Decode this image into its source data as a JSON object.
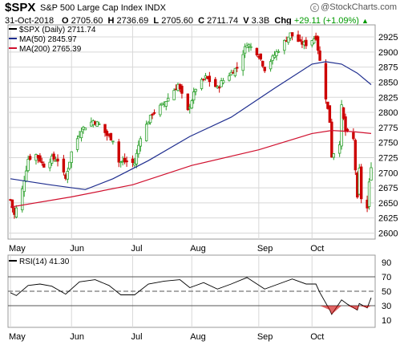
{
  "header": {
    "symbol": "$SPX",
    "name": "S&P 500 Large Cap Index INDX",
    "date": "31-Oct-2018",
    "quote": {
      "open_label": "O",
      "open": "2705.60",
      "high_label": "H",
      "high": "2736.69",
      "low_label": "L",
      "low": "2705.60",
      "close_label": "C",
      "close": "2711.74",
      "volume_label": "V",
      "volume": "3.3B",
      "chg_label": "Chg",
      "chg": "+29.11 (+1.09%)",
      "chg_arrow": "▲"
    },
    "brand": "@StockCharts.com"
  },
  "legend": {
    "main": "$SPX (Daily) 2711.74",
    "ma50": "MA(50) 2845.97",
    "ma200": "MA(200) 2765.39",
    "rsi": "RSI(14) 41.30"
  },
  "colors": {
    "up": "#2ca02c",
    "down": "#cc0000",
    "ma50": "#1f2e8f",
    "ma200": "#d0102e",
    "rsi": "#000000",
    "grid": "#d8d8d8",
    "chg": "#009900"
  },
  "chart_data": [
    {
      "type": "candlestick",
      "title": "$SPX (Daily) 2711.74",
      "xaxis_ticks": [
        "May",
        "Jun",
        "Jul",
        "Aug",
        "Sep",
        "Oct"
      ],
      "yaxis_ticks": [
        2600,
        2625,
        2650,
        2675,
        2700,
        2725,
        2750,
        2775,
        2800,
        2825,
        2850,
        2875,
        2900,
        2925
      ],
      "ylim": [
        2590,
        2945
      ],
      "x_range": [
        "2018-05-01",
        "2018-10-31"
      ],
      "grid": true,
      "legend_position": "top-left",
      "close_path": [
        [
          "2018-05-01",
          2655
        ],
        [
          "2018-05-03",
          2630
        ],
        [
          "2018-05-07",
          2672
        ],
        [
          "2018-05-10",
          2723
        ],
        [
          "2018-05-14",
          2730
        ],
        [
          "2018-05-18",
          2712
        ],
        [
          "2018-05-22",
          2724
        ],
        [
          "2018-05-25",
          2721
        ],
        [
          "2018-05-29",
          2690
        ],
        [
          "2018-06-01",
          2734
        ],
        [
          "2018-06-06",
          2772
        ],
        [
          "2018-06-12",
          2786
        ],
        [
          "2018-06-15",
          2780
        ],
        [
          "2018-06-19",
          2762
        ],
        [
          "2018-06-22",
          2755
        ],
        [
          "2018-06-25",
          2718
        ],
        [
          "2018-06-29",
          2718
        ],
        [
          "2018-07-03",
          2716
        ],
        [
          "2018-07-06",
          2760
        ],
        [
          "2018-07-12",
          2798
        ],
        [
          "2018-07-18",
          2815
        ],
        [
          "2018-07-25",
          2846
        ],
        [
          "2018-07-30",
          2802
        ],
        [
          "2018-08-03",
          2840
        ],
        [
          "2018-08-08",
          2858
        ],
        [
          "2018-08-14",
          2840
        ],
        [
          "2018-08-16",
          2850
        ],
        [
          "2018-08-24",
          2875
        ],
        [
          "2018-08-29",
          2914
        ],
        [
          "2018-09-04",
          2896
        ],
        [
          "2018-09-07",
          2872
        ],
        [
          "2018-09-14",
          2904
        ],
        [
          "2018-09-20",
          2930
        ],
        [
          "2018-09-25",
          2915
        ],
        [
          "2018-09-28",
          2913
        ],
        [
          "2018-10-03",
          2925
        ],
        [
          "2018-10-05",
          2885
        ],
        [
          "2018-10-10",
          2785
        ],
        [
          "2018-10-11",
          2728
        ],
        [
          "2018-10-15",
          2750
        ],
        [
          "2018-10-16",
          2809
        ],
        [
          "2018-10-18",
          2768
        ],
        [
          "2018-10-22",
          2755
        ],
        [
          "2018-10-24",
          2656
        ],
        [
          "2018-10-25",
          2705
        ],
        [
          "2018-10-26",
          2658
        ],
        [
          "2018-10-29",
          2641
        ],
        [
          "2018-10-30",
          2682
        ],
        [
          "2018-10-31",
          2712
        ]
      ],
      "series": [
        {
          "name": "MA(50) 2845.97",
          "values": [
            [
              "2018-05-01",
              2690
            ],
            [
              "2018-05-21",
              2680
            ],
            [
              "2018-06-08",
              2672
            ],
            [
              "2018-06-22",
              2690
            ],
            [
              "2018-07-10",
              2720
            ],
            [
              "2018-07-31",
              2760
            ],
            [
              "2018-08-21",
              2792
            ],
            [
              "2018-09-12",
              2840
            ],
            [
              "2018-10-01",
              2880
            ],
            [
              "2018-10-08",
              2884
            ],
            [
              "2018-10-16",
              2880
            ],
            [
              "2018-10-24",
              2865
            ],
            [
              "2018-10-31",
              2846
            ]
          ]
        },
        {
          "name": "MA(200) 2765.39",
          "values": [
            [
              "2018-05-01",
              2643
            ],
            [
              "2018-06-01",
              2660
            ],
            [
              "2018-07-02",
              2680
            ],
            [
              "2018-08-01",
              2712
            ],
            [
              "2018-09-04",
              2738
            ],
            [
              "2018-10-01",
              2765
            ],
            [
              "2018-10-11",
              2770
            ],
            [
              "2018-10-22",
              2768
            ],
            [
              "2018-10-31",
              2765
            ]
          ]
        }
      ]
    },
    {
      "type": "line",
      "title": "RSI(14) 41.30",
      "yaxis_ticks": [
        10,
        30,
        50,
        70,
        90
      ],
      "ylim": [
        0,
        100
      ],
      "reference_lines": [
        30,
        50,
        70
      ],
      "xaxis_ticks": [
        "May",
        "Jun",
        "Jul",
        "Aug",
        "Sep",
        "Oct"
      ],
      "series": [
        {
          "name": "RSI(14) 41.30",
          "values": [
            [
              "2018-05-01",
              48
            ],
            [
              "2018-05-04",
              44
            ],
            [
              "2018-05-10",
              58
            ],
            [
              "2018-05-16",
              60
            ],
            [
              "2018-05-22",
              57
            ],
            [
              "2018-05-29",
              46
            ],
            [
              "2018-06-05",
              63
            ],
            [
              "2018-06-13",
              66
            ],
            [
              "2018-06-20",
              58
            ],
            [
              "2018-06-26",
              45
            ],
            [
              "2018-07-03",
              45
            ],
            [
              "2018-07-10",
              60
            ],
            [
              "2018-07-18",
              64
            ],
            [
              "2018-07-26",
              66
            ],
            [
              "2018-07-31",
              55
            ],
            [
              "2018-08-07",
              62
            ],
            [
              "2018-08-14",
              53
            ],
            [
              "2018-08-21",
              60
            ],
            [
              "2018-08-29",
              69
            ],
            [
              "2018-09-07",
              53
            ],
            [
              "2018-09-14",
              60
            ],
            [
              "2018-09-21",
              67
            ],
            [
              "2018-09-28",
              60
            ],
            [
              "2018-10-03",
              60
            ],
            [
              "2018-10-05",
              48
            ],
            [
              "2018-10-10",
              24
            ],
            [
              "2018-10-11",
              18
            ],
            [
              "2018-10-16",
              38
            ],
            [
              "2018-10-19",
              32
            ],
            [
              "2018-10-24",
              24
            ],
            [
              "2018-10-25",
              33
            ],
            [
              "2018-10-29",
              27
            ],
            [
              "2018-10-31",
              41
            ]
          ]
        }
      ]
    }
  ]
}
